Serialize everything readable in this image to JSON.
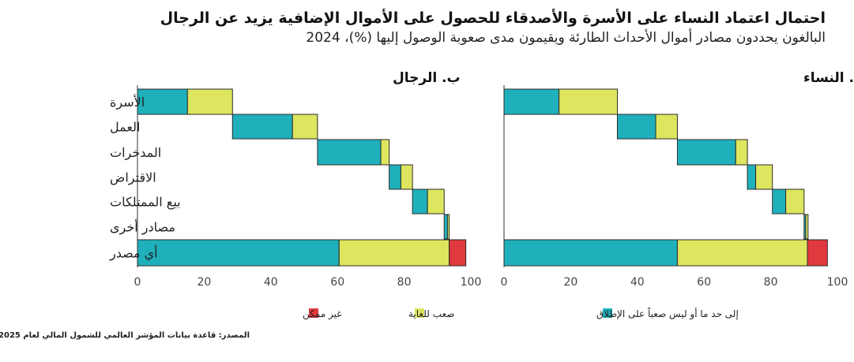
{
  "header": {
    "title": "احتمال اعتماد النساء على الأسرة والأصدقاء للحصول على الأموال الإضافية يزيد عن الرجال",
    "subtitle": "البالغون يحددون مصادر أموال الأحداث الطارئة ويقيمون مدى صعوبة الوصول إليها (%)، 2024"
  },
  "source": "المصدر: قاعدة بيانات المؤشر العالمي للشمول المالي لعام 2025",
  "colors": {
    "easy": "#1fb0bb",
    "hard": "#dde65e",
    "impossible": "#e1393d",
    "edge": "#2b2b2b"
  },
  "legend": [
    {
      "key": "easy",
      "label": "إلى حد ما أو ليس صعباً على الإطلاق"
    },
    {
      "key": "hard",
      "label": "صعب للغاية"
    },
    {
      "key": "impossible",
      "label": "غير ممكن"
    }
  ],
  "chart_data": {
    "type": "waterfall-stacked-bar",
    "categories": [
      "الأسرة",
      "العمل",
      "المدخرات",
      "الاقتراض",
      "بيع الممتلكات",
      "مصادر أخرى",
      "أي مصدر"
    ],
    "xlim": [
      0,
      100
    ],
    "xticks": [
      "0",
      "20",
      "40",
      "60",
      "80",
      "100"
    ],
    "panels": [
      {
        "title": "أ. النساء",
        "segments": [
          {
            "category": "الأسرة",
            "start": 0,
            "easy": 16.5,
            "hard": 17.5,
            "impossible": 0
          },
          {
            "category": "العمل",
            "start": 34,
            "easy": 11.5,
            "hard": 6.5,
            "impossible": 0
          },
          {
            "category": "المدخرات",
            "start": 52,
            "easy": 17.5,
            "hard": 3.5,
            "impossible": 0
          },
          {
            "category": "الاقتراض",
            "start": 73,
            "easy": 2.5,
            "hard": 5,
            "impossible": 0
          },
          {
            "category": "بيع الممتلكات",
            "start": 80.5,
            "easy": 4,
            "hard": 5.5,
            "impossible": 0
          },
          {
            "category": "مصادر أخرى",
            "start": 90,
            "easy": 0.5,
            "hard": 0.7,
            "impossible": 0
          },
          {
            "category": "أي مصدر",
            "start": 0,
            "easy": 52,
            "hard": 39,
            "impossible": 6
          }
        ]
      },
      {
        "title": "ب. الرجال",
        "segments": [
          {
            "category": "الأسرة",
            "start": 0,
            "easy": 15,
            "hard": 13.5,
            "impossible": 0
          },
          {
            "category": "العمل",
            "start": 28.5,
            "easy": 18,
            "hard": 7.5,
            "impossible": 0
          },
          {
            "category": "المدخرات",
            "start": 54,
            "easy": 19,
            "hard": 2.5,
            "impossible": 0
          },
          {
            "category": "الاقتراض",
            "start": 75.5,
            "easy": 3.5,
            "hard": 3.5,
            "impossible": 0
          },
          {
            "category": "بيع الممتلكات",
            "start": 82.5,
            "easy": 4.5,
            "hard": 5,
            "impossible": 0
          },
          {
            "category": "مصادر أخرى",
            "start": 92,
            "easy": 1,
            "hard": 0.5,
            "impossible": 0
          },
          {
            "category": "أي مصدر",
            "start": 0,
            "easy": 60.5,
            "hard": 33,
            "impossible": 5
          }
        ]
      }
    ]
  }
}
